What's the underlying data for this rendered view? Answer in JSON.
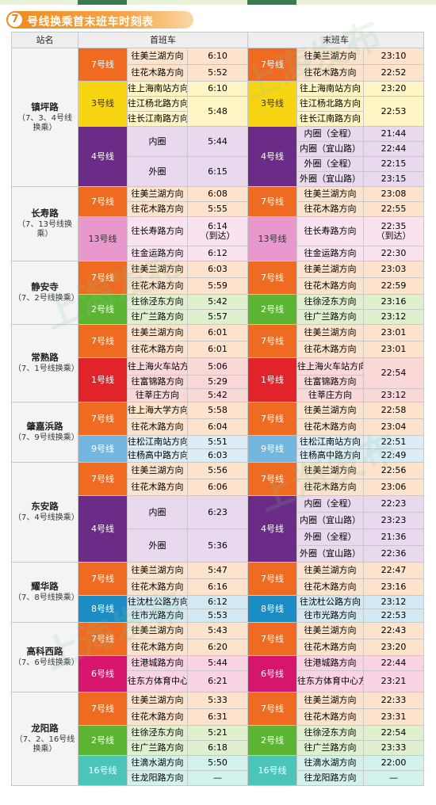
{
  "header": {
    "number": "7",
    "title": "号线换乘首末班车时刻表"
  },
  "columns": {
    "station": "站名",
    "first": "首班车",
    "last": "末班车"
  },
  "watermark": "上海发布",
  "colors": {
    "7号线": "#ef6b22",
    "3号线": "#f7d513",
    "4号线": "#6a2c87",
    "13号线": "#e898cc",
    "2号线": "#5cb532",
    "1号线": "#e0242a",
    "9号线": "#74b6de",
    "8号线": "#1c8cc4",
    "6号线": "#d5156e",
    "16号线": "#4ac5b7"
  },
  "stations": [
    {
      "name": "镇坪路",
      "transfer": "（7、3、4号线换乘）",
      "lines": [
        {
          "line": "7号线",
          "key": "7",
          "rows": [
            {
              "fd": "往美兰湖方向",
              "ft": "6:10",
              "ld": "往美兰湖方向",
              "lt": "23:10",
              "h": 21
            },
            {
              "fd": "往花木路方向",
              "ft": "5:52",
              "ld": "往花木路方向",
              "lt": "22:52",
              "h": 21
            }
          ]
        },
        {
          "line": "3号线",
          "key": "3",
          "rows": [
            {
              "fd": "往上海南站方向",
              "ft": "6:10",
              "ld": "往上海南站方向",
              "lt": "23:20",
              "h": 19
            },
            {
              "fd": "往江杨北路方向",
              "ft": "5:48",
              "ld": "往江杨北路方向",
              "lt": "22:53",
              "h": 37,
              "sub": [
                {
                  "fd": "往江杨北路方向",
                  "ld": "往江杨北路方向"
                },
                {
                  "fd": "往长江南路方向",
                  "ld": "往长江南路方向"
                }
              ]
            }
          ]
        },
        {
          "line": "4号线",
          "key": "4",
          "rows": [
            {
              "fd": "内圈",
              "ft": "5:44",
              "h": 37,
              "sub4": [
                {
                  "ld": "内圈（全程）",
                  "lt": "21:44"
                },
                {
                  "ld": "内圈（宜山路）",
                  "lt": "22:44"
                }
              ]
            },
            {
              "fd": "外圈",
              "ft": "6:15",
              "h": 37,
              "sub4": [
                {
                  "ld": "外圈（全程）",
                  "lt": "22:15"
                },
                {
                  "ld": "外圈（宜山路）",
                  "lt": "23:15"
                }
              ]
            }
          ]
        }
      ]
    },
    {
      "name": "长寿路",
      "transfer": "（7、13号线换乘）",
      "lines": [
        {
          "line": "7号线",
          "key": "7",
          "rows": [
            {
              "fd": "往美兰湖方向",
              "ft": "6:08",
              "ld": "往美兰湖方向",
              "lt": "23:08",
              "h": 19
            },
            {
              "fd": "往花木路方向",
              "ft": "5:55",
              "ld": "往花木路方向",
              "lt": "22:55",
              "h": 19
            }
          ]
        },
        {
          "line": "13号线",
          "key": "13",
          "rows": [
            {
              "fd": "往长寿路方向",
              "ft": "6:14",
              "ft2": "（到达）",
              "ld": "往长寿路方向",
              "lt": "22:35",
              "lt2": "（到达）",
              "h": 37
            },
            {
              "fd": "往金运路方向",
              "ft": "6:12",
              "ld": "往金运路方向",
              "lt": "22:30",
              "h": 19
            }
          ]
        }
      ]
    },
    {
      "name": "静安寺",
      "transfer": "（7、2号线换乘）",
      "lines": [
        {
          "line": "7号线",
          "key": "7",
          "rows": [
            {
              "fd": "往美兰湖方向",
              "ft": "6:03",
              "ld": "往美兰湖方向",
              "lt": "23:03",
              "h": 21
            },
            {
              "fd": "往花木路方向",
              "ft": "5:59",
              "ld": "往花木路方向",
              "lt": "22:59",
              "h": 21
            }
          ]
        },
        {
          "line": "2号线",
          "key": "2",
          "rows": [
            {
              "fd": "往徐泾东方向",
              "ft": "5:42",
              "ld": "往徐泾东方向",
              "lt": "23:16",
              "h": 19
            },
            {
              "fd": "往广兰路方向",
              "ft": "5:57",
              "ld": "往广兰路方向",
              "lt": "23:12",
              "h": 19
            }
          ]
        }
      ]
    },
    {
      "name": "常熟路",
      "transfer": "（7、1号线换乘）",
      "lines": [
        {
          "line": "7号线",
          "key": "7",
          "rows": [
            {
              "fd": "往美兰湖方向",
              "ft": "6:01",
              "ld": "往美兰湖方向",
              "lt": "23:01",
              "h": 21
            },
            {
              "fd": "往花木路方向",
              "ft": "6:01",
              "ld": "往花木路方向",
              "lt": "23:01",
              "h": 21
            }
          ]
        },
        {
          "line": "1号线",
          "key": "1",
          "rows": [
            {
              "fd": "往上海火车站方向",
              "ft": "5:06",
              "ld": "往上海火车站方向",
              "lt": "22:54",
              "h": 22
            },
            {
              "fd": "往富锦路方向",
              "ft": "5:29",
              "ld": "往富锦路方向",
              "h": 17,
              "span": true
            },
            {
              "fd": "往莘庄方向",
              "ft": "5:42",
              "ld": "往莘庄方向",
              "lt": "23:12",
              "h": 17
            }
          ]
        }
      ]
    },
    {
      "name": "肇嘉浜路",
      "transfer": "（7、9号线换乘）",
      "lines": [
        {
          "line": "7号线",
          "key": "7",
          "rows": [
            {
              "fd": "往上海大学方向",
              "ft": "5:58",
              "ld": "往美兰湖方向",
              "lt": "22:58",
              "h": 21
            },
            {
              "fd": "往花木路方向",
              "ft": "6:04",
              "ld": "往花木路方向",
              "lt": "23:04",
              "h": 21
            }
          ]
        },
        {
          "line": "9号线",
          "key": "9",
          "rows": [
            {
              "fd": "往松江南站方向",
              "ft": "5:51",
              "ld": "往松江南站方向",
              "lt": "22:51",
              "h": 17
            },
            {
              "fd": "往杨高中路方向",
              "ft": "6:03",
              "ld": "往杨高中路方向",
              "lt": "22:49",
              "h": 17
            }
          ]
        }
      ]
    },
    {
      "name": "东安路",
      "transfer": "（7、4号线换乘）",
      "lines": [
        {
          "line": "7号线",
          "key": "7",
          "rows": [
            {
              "fd": "往美兰湖方向",
              "ft": "5:56",
              "ld": "往美兰湖方向",
              "lt": "22:56",
              "h": 21
            },
            {
              "fd": "往花木路方向",
              "ft": "6:06",
              "ld": "往花木路方向",
              "lt": "23:06",
              "h": 21
            }
          ]
        },
        {
          "line": "4号线",
          "key": "4",
          "rows": [
            {
              "fd": "内圈",
              "ft": "6:23",
              "h": 42,
              "sub4": [
                {
                  "ld": "内圈（全程）",
                  "lt": "22:23"
                },
                {
                  "ld": "内圈（宜山路）",
                  "lt": "23:23"
                }
              ]
            },
            {
              "fd": "外圈",
              "ft": "5:36",
              "h": 42,
              "sub4": [
                {
                  "ld": "外圈（全程）",
                  "lt": "21:36"
                },
                {
                  "ld": "外圈（宜山路）",
                  "lt": "22:36"
                }
              ]
            }
          ]
        }
      ]
    },
    {
      "name": "耀华路",
      "transfer": "（7、8号线换乘）",
      "lines": [
        {
          "line": "7号线",
          "key": "7",
          "rows": [
            {
              "fd": "往美兰湖方向",
              "ft": "5:47",
              "ld": "往美兰湖方向",
              "lt": "22:47",
              "h": 21
            },
            {
              "fd": "往花木路方向",
              "ft": "6:16",
              "ld": "往花木路方向",
              "lt": "23:16",
              "h": 21
            }
          ]
        },
        {
          "line": "8号线",
          "key": "8",
          "rows": [
            {
              "fd": "往沈杜公路方向",
              "ft": "6:12",
              "ld": "往沈杜公路方向",
              "lt": "23:12",
              "h": 17
            },
            {
              "fd": "往市光路方向",
              "ft": "5:53",
              "ld": "往市光路方向",
              "lt": "22:53",
              "h": 17
            }
          ]
        }
      ]
    },
    {
      "name": "高科西路",
      "transfer": "（7、6号线换乘）",
      "lines": [
        {
          "line": "7号线",
          "key": "7",
          "rows": [
            {
              "fd": "往美兰湖方向",
              "ft": "5:43",
              "ld": "往美兰湖方向",
              "lt": "22:43",
              "h": 21
            },
            {
              "fd": "往花木路方向",
              "ft": "6:20",
              "ld": "往花木路方向",
              "lt": "23:20",
              "h": 21
            }
          ]
        },
        {
          "line": "6号线",
          "key": "6",
          "rows": [
            {
              "fd": "往港城路方向",
              "ft": "5:44",
              "ld": "往港城路方向",
              "lt": "22:44",
              "h": 19
            },
            {
              "fd": "往东方体育中心方向",
              "ft": "6:21",
              "ld": "往东方体育中心方向",
              "lt": "23:21",
              "h": 27
            }
          ]
        }
      ]
    },
    {
      "name": "龙阳路",
      "transfer": "（7、2、16号线换乘）",
      "lines": [
        {
          "line": "7号线",
          "key": "7",
          "rows": [
            {
              "fd": "往美兰湖方向",
              "ft": "5:33",
              "ld": "往美兰湖方向",
              "lt": "22:33",
              "h": 21
            },
            {
              "fd": "往花木路方向",
              "ft": "6:31",
              "ld": "往花木路方向",
              "lt": "23:31",
              "h": 21
            }
          ]
        },
        {
          "line": "2号线",
          "key": "2",
          "rows": [
            {
              "fd": "往徐泾东方向",
              "ft": "5:21",
              "ld": "往徐泾东方向",
              "lt": "22:54",
              "h": 19
            },
            {
              "fd": "往广兰路方向",
              "ft": "6:18",
              "ld": "往广兰路方向",
              "lt": "23:33",
              "h": 19
            }
          ]
        },
        {
          "line": "16号线",
          "key": "16",
          "rows": [
            {
              "fd": "往滴水湖方向",
              "ft": "5:50",
              "ld": "往滴水湖方向",
              "lt": "22:00",
              "h": 19
            },
            {
              "fd": "往龙阳路方向",
              "ft": "—",
              "ld": "往龙阳路方向",
              "lt": "—",
              "h": 19
            }
          ]
        }
      ]
    }
  ]
}
